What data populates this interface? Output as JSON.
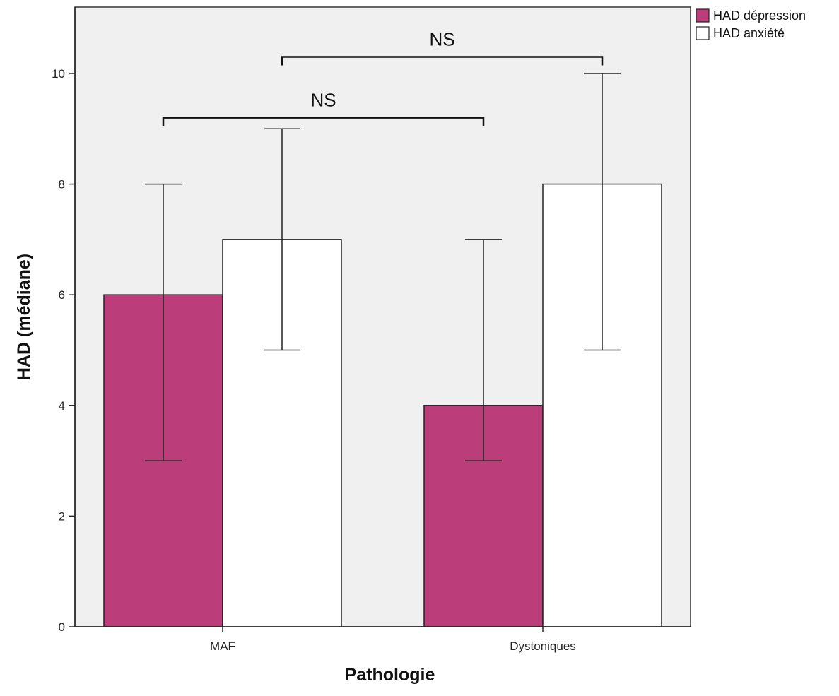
{
  "chart_data": {
    "type": "bar",
    "xlabel": "Pathologie",
    "ylabel": "HAD (médiane)",
    "categories": [
      "MAF",
      "Dystoniques"
    ],
    "ylim": [
      0,
      11.2
    ],
    "yticks": [
      0,
      2,
      4,
      6,
      8,
      10
    ],
    "grid": false,
    "legend_position": "top-right",
    "plot_background": "#f0f0f0",
    "series": [
      {
        "name": "HAD dépression",
        "color": "#bb3d7a",
        "values": [
          6,
          4
        ],
        "error_low": [
          3,
          3
        ],
        "error_high": [
          8,
          7
        ]
      },
      {
        "name": "HAD anxiété",
        "color": "#ffffff",
        "values": [
          7,
          8
        ],
        "error_low": [
          5,
          5
        ],
        "error_high": [
          9,
          10
        ]
      }
    ],
    "annotations": [
      {
        "text": "NS",
        "from": {
          "category": 0,
          "series": 0
        },
        "to": {
          "category": 1,
          "series": 0
        },
        "y": 9.2
      },
      {
        "text": "NS",
        "from": {
          "category": 0,
          "series": 1
        },
        "to": {
          "category": 1,
          "series": 1
        },
        "y": 10.3
      }
    ]
  }
}
